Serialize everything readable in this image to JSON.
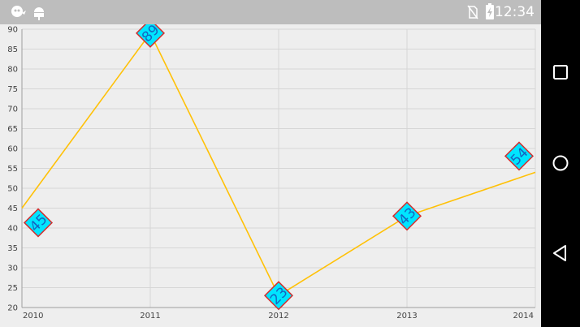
{
  "status_bar": {
    "time": "12:34",
    "icons": [
      "ghost-notification-icon",
      "android-debug-icon",
      "no-sim-icon",
      "battery-charging-icon"
    ],
    "color": "#ffffff",
    "background": "#bdbdbd"
  },
  "nav_bar": {
    "buttons": [
      "recents-button",
      "home-button",
      "back-button"
    ],
    "background": "#000000"
  },
  "chart_data": {
    "type": "line",
    "categories": [
      "2010",
      "2011",
      "2012",
      "2013",
      "2014"
    ],
    "series": [
      {
        "values": [
          45,
          89,
          23,
          43,
          54
        ],
        "color": "#ffc107"
      }
    ],
    "ylim": [
      20,
      90
    ],
    "yticks": [
      20,
      25,
      30,
      35,
      40,
      45,
      50,
      55,
      60,
      65,
      70,
      75,
      80,
      85,
      90
    ],
    "grid": true,
    "data_labels": {
      "shape": "diamond",
      "fill": "#00e5ff",
      "border": "#d32f2f",
      "text_color": "#1565c0"
    }
  }
}
